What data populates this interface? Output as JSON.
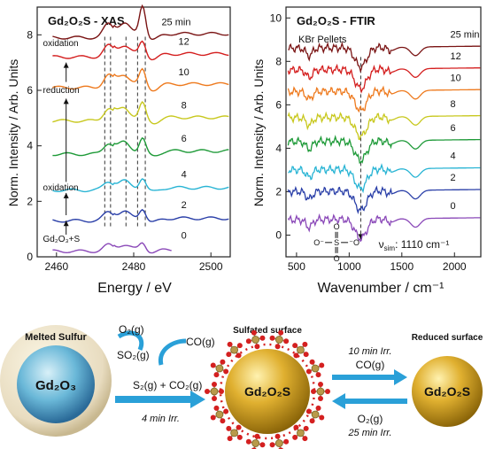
{
  "xas": {
    "title": "Gd₂O₂S - XAS",
    "xlabel": "Energy / eV",
    "ylabel": "Norm. Intensity / Arb. Units",
    "xlim": [
      2455,
      2505
    ],
    "ylim": [
      0,
      9
    ],
    "xticks": [
      "2460",
      "2480",
      "2500"
    ],
    "yticks": [
      "0",
      "2",
      "4",
      "6",
      "8"
    ],
    "dashed_lines_x": [
      2472.5,
      2474,
      2478,
      2481,
      2483
    ],
    "annotations": {
      "oxidation_top": "oxidation",
      "reduction": "reduction",
      "oxidation_bottom": "oxidation",
      "start": "Gd₂O₃+S"
    }
  },
  "ftir": {
    "title": "Gd₂O₂S - FTIR",
    "subtitle": "KBr Pellets",
    "xlabel": "Wavenumber / cm⁻¹",
    "ylabel": "Norm. Intensity / Arb. Units",
    "xlim": [
      400,
      2250
    ],
    "ylim": [
      -1,
      10.5
    ],
    "xticks": [
      "500",
      "1000",
      "1500",
      "2000"
    ],
    "yticks": [
      "0",
      "2",
      "4",
      "6",
      "8",
      "10"
    ],
    "dashed_line_x": 1110,
    "nu_label": "ν",
    "nu_sub": "sim",
    "nu_value": ": 1110 cm⁻¹"
  },
  "chart_data": [
    {
      "type": "line",
      "title": "Gd₂O₂S - XAS",
      "xlabel": "Energy / eV",
      "ylabel": "Norm. Intensity / Arb. Units",
      "xlim": [
        2455,
        2505
      ],
      "ylim": [
        0,
        9
      ],
      "series": [
        {
          "name": "0",
          "color": "#8a48b8",
          "offset": 0.2,
          "values": []
        },
        {
          "name": "2",
          "color": "#2a3fa8",
          "offset": 1.3,
          "values": []
        },
        {
          "name": "4",
          "color": "#28b4d4",
          "offset": 2.4,
          "values": []
        },
        {
          "name": "6",
          "color": "#1e9a38",
          "offset": 3.7,
          "values": []
        },
        {
          "name": "8",
          "color": "#c8c81e",
          "offset": 4.9,
          "values": []
        },
        {
          "name": "10",
          "color": "#ee7a1e",
          "offset": 6.1,
          "values": []
        },
        {
          "name": "12",
          "color": "#d41e1e",
          "offset": 7.2,
          "values": []
        },
        {
          "name": "25 min",
          "color": "#7a1414",
          "offset": 7.9,
          "values": []
        }
      ]
    },
    {
      "type": "line",
      "title": "Gd₂O₂S - FTIR",
      "xlabel": "Wavenumber / cm⁻¹",
      "ylabel": "Norm. Intensity / Arb. Units",
      "xlim": [
        400,
        2250
      ],
      "ylim": [
        -1,
        10.5
      ],
      "series": [
        {
          "name": "0",
          "color": "#8a48b8",
          "offset": 0.7
        },
        {
          "name": "2",
          "color": "#2a3fa8",
          "offset": 2.0
        },
        {
          "name": "4",
          "color": "#28b4d4",
          "offset": 3.0
        },
        {
          "name": "6",
          "color": "#1e9a38",
          "offset": 4.3
        },
        {
          "name": "8",
          "color": "#c8c81e",
          "offset": 5.4
        },
        {
          "name": "10",
          "color": "#ee7a1e",
          "offset": 6.6
        },
        {
          "name": "12",
          "color": "#d41e1e",
          "offset": 7.6
        },
        {
          "name": "25 min",
          "color": "#7a1414",
          "offset": 8.6
        }
      ]
    }
  ],
  "scheme": {
    "melted_label": "Melted Sulfur",
    "gd2o3": "Gd₂O₃",
    "o2_in": "O₂(g)",
    "so2_out": "SO₂(g)",
    "co_in": "CO(g)",
    "s2_co2": "S₂(g) + CO₂(g)",
    "irr_4": "4 min Irr.",
    "sulfated_title": "Sulfated surface",
    "gd2o2s_1": "Gd₂O₂S",
    "irr_10": "10 min Irr.",
    "co_2": "CO(g)",
    "o2_2": "O₂(g)",
    "irr_25": "25 min Irr.",
    "reduced_title": "Reduced surface",
    "gd2o2s_2": "Gd₂O₂S"
  },
  "colors": {
    "arrow_blue": "#2aa0d8",
    "gold": "#c89a1e",
    "sulfate_red": "#d42020",
    "melted_shell": "#e8dcc0"
  }
}
